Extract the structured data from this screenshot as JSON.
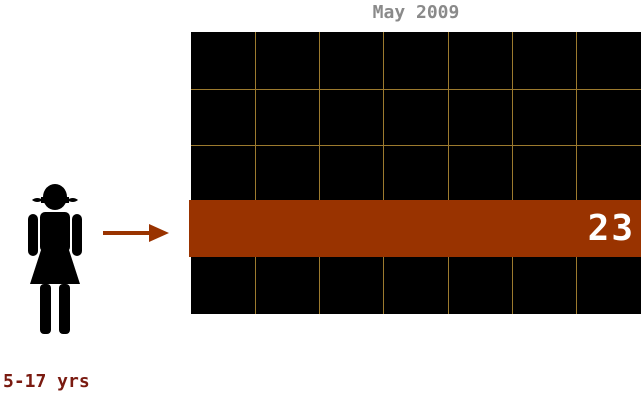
{
  "calendar": {
    "title": "May 2009",
    "columns": 7,
    "rows": 5,
    "highlight_row": 4
  },
  "highlight": {
    "value": "23"
  },
  "person": {
    "icon": "girl-icon",
    "age_label": "5-17 yrs"
  },
  "arrow": {
    "icon": "right-arrow-icon"
  },
  "colors": {
    "highlight": "#993300",
    "grid_background": "#000000",
    "grid_lines": "#9c7a2e",
    "title": "#8a8a8a",
    "age_label": "#7a1a10",
    "figure": "#000000"
  }
}
